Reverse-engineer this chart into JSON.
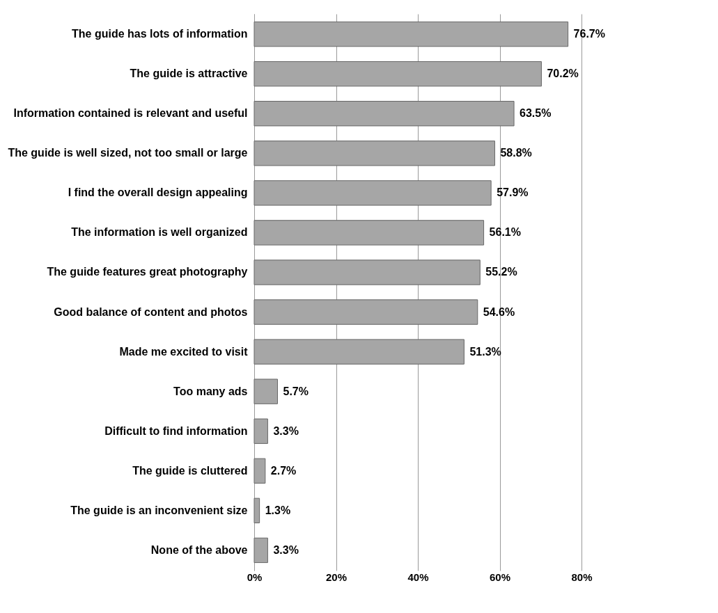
{
  "chart_data": {
    "type": "bar",
    "orientation": "horizontal",
    "categories": [
      "The guide has lots of information",
      "The guide is attractive",
      "Information contained is relevant and useful",
      "The guide is well sized, not too small or large",
      "I find the overall design appealing",
      "The information is well organized",
      "The guide features great photography",
      "Good balance of content and photos",
      "Made me excited to visit",
      "Too many ads",
      "Difficult to find information",
      "The guide is cluttered",
      "The guide is an inconvenient size",
      "None of the above"
    ],
    "values": [
      76.7,
      70.2,
      63.5,
      58.8,
      57.9,
      56.1,
      55.2,
      54.6,
      51.3,
      5.7,
      3.3,
      2.7,
      1.3,
      3.3
    ],
    "value_labels": [
      "76.7%",
      "70.2%",
      "63.5%",
      "58.8%",
      "57.9%",
      "56.1%",
      "55.2%",
      "54.6%",
      "51.3%",
      "5.7%",
      "3.3%",
      "2.7%",
      "1.3%",
      "3.3%"
    ],
    "color": "#a6a6a6",
    "xlim": [
      0,
      80
    ],
    "xticks": [
      {
        "value": 0,
        "label": "0%"
      },
      {
        "value": 20,
        "label": "20%"
      },
      {
        "value": 40,
        "label": "40%"
      },
      {
        "value": 60,
        "label": "60%"
      },
      {
        "value": 80,
        "label": "80%"
      }
    ],
    "grid": "x"
  }
}
